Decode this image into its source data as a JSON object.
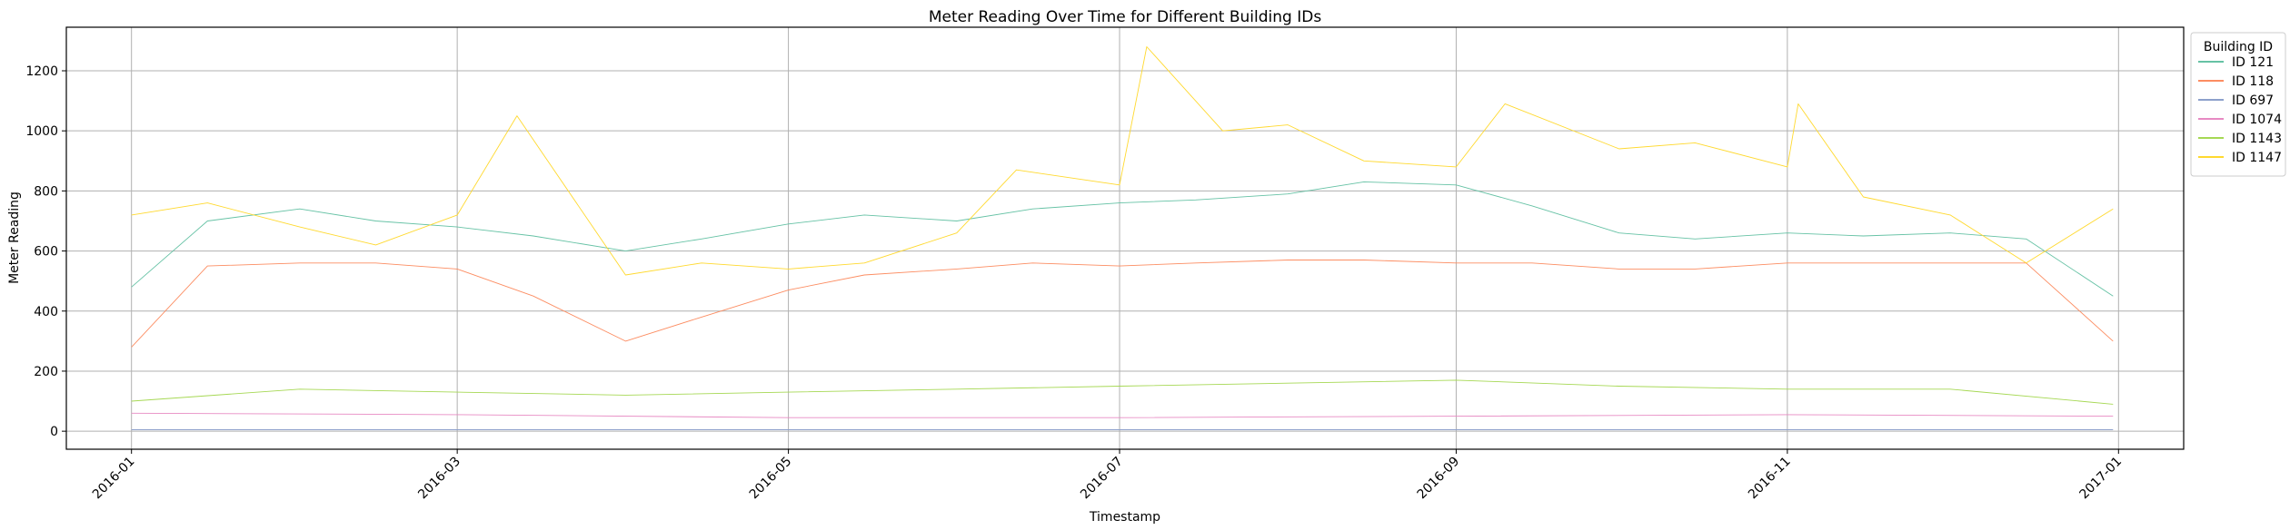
{
  "chart_data": {
    "type": "line",
    "title": "Meter Reading Over Time for Different Building IDs",
    "xlabel": "Timestamp",
    "ylabel": "Meter Reading",
    "x_range": [
      "2015-12-20",
      "2017-01-13"
    ],
    "ylim": [
      -60,
      1345
    ],
    "grid": true,
    "legend_placement": "outside-top-right",
    "legend_title": "Building ID",
    "x_ticks": [
      {
        "date": "2016-01-01",
        "label": "2016-01"
      },
      {
        "date": "2016-03-01",
        "label": "2016-03"
      },
      {
        "date": "2016-05-01",
        "label": "2016-05"
      },
      {
        "date": "2016-07-01",
        "label": "2016-07"
      },
      {
        "date": "2016-09-01",
        "label": "2016-09"
      },
      {
        "date": "2016-11-01",
        "label": "2016-11"
      },
      {
        "date": "2017-01-01",
        "label": "2017-01"
      }
    ],
    "y_ticks": [
      0,
      200,
      400,
      600,
      800,
      1000,
      1200
    ],
    "series": [
      {
        "name": "ID 121",
        "color": "#66c2a5",
        "x": [
          "2016-01-01",
          "2016-01-15",
          "2016-02-01",
          "2016-02-15",
          "2016-03-01",
          "2016-03-15",
          "2016-04-01",
          "2016-04-15",
          "2016-05-01",
          "2016-05-15",
          "2016-06-01",
          "2016-06-15",
          "2016-07-01",
          "2016-07-15",
          "2016-08-01",
          "2016-08-15",
          "2016-09-01",
          "2016-09-15",
          "2016-10-01",
          "2016-10-15",
          "2016-11-01",
          "2016-11-15",
          "2016-12-01",
          "2016-12-15",
          "2016-12-31"
        ],
        "y": [
          480,
          700,
          740,
          700,
          680,
          650,
          600,
          640,
          690,
          720,
          700,
          740,
          760,
          770,
          790,
          830,
          820,
          750,
          660,
          640,
          660,
          650,
          660,
          640,
          450
        ]
      },
      {
        "name": "ID 118",
        "color": "#fc8d62",
        "x": [
          "2016-01-01",
          "2016-01-15",
          "2016-02-01",
          "2016-02-15",
          "2016-03-01",
          "2016-03-15",
          "2016-04-01",
          "2016-04-15",
          "2016-05-01",
          "2016-05-15",
          "2016-06-01",
          "2016-06-15",
          "2016-07-01",
          "2016-07-15",
          "2016-08-01",
          "2016-08-15",
          "2016-09-01",
          "2016-09-15",
          "2016-10-01",
          "2016-10-15",
          "2016-11-01",
          "2016-11-15",
          "2016-12-01",
          "2016-12-15",
          "2016-12-31"
        ],
        "y": [
          280,
          550,
          560,
          560,
          540,
          450,
          300,
          380,
          470,
          520,
          540,
          560,
          550,
          560,
          570,
          570,
          560,
          560,
          540,
          540,
          560,
          560,
          560,
          560,
          300
        ]
      },
      {
        "name": "ID 697",
        "color": "#8da0cb",
        "x": [
          "2016-01-01",
          "2016-03-01",
          "2016-05-01",
          "2016-07-01",
          "2016-09-01",
          "2016-11-01",
          "2016-12-31"
        ],
        "y": [
          5,
          5,
          5,
          5,
          5,
          5,
          5
        ]
      },
      {
        "name": "ID 1074",
        "color": "#e78ac3",
        "x": [
          "2016-01-01",
          "2016-03-01",
          "2016-05-01",
          "2016-07-01",
          "2016-09-01",
          "2016-11-01",
          "2016-12-31"
        ],
        "y": [
          60,
          55,
          45,
          45,
          50,
          55,
          50
        ]
      },
      {
        "name": "ID 1143",
        "color": "#a6d854",
        "x": [
          "2016-01-01",
          "2016-02-01",
          "2016-03-01",
          "2016-04-01",
          "2016-05-01",
          "2016-06-01",
          "2016-07-01",
          "2016-08-01",
          "2016-09-01",
          "2016-10-01",
          "2016-11-01",
          "2016-12-01",
          "2016-12-31"
        ],
        "y": [
          100,
          140,
          130,
          120,
          130,
          140,
          150,
          160,
          170,
          150,
          140,
          140,
          90
        ]
      },
      {
        "name": "ID 1147",
        "color": "#ffd92f",
        "x": [
          "2016-01-01",
          "2016-01-15",
          "2016-02-01",
          "2016-02-15",
          "2016-03-01",
          "2016-03-12",
          "2016-04-01",
          "2016-04-15",
          "2016-05-01",
          "2016-05-15",
          "2016-06-01",
          "2016-06-12",
          "2016-07-01",
          "2016-07-06",
          "2016-07-20",
          "2016-08-01",
          "2016-08-15",
          "2016-09-01",
          "2016-09-10",
          "2016-10-01",
          "2016-10-15",
          "2016-11-01",
          "2016-11-03",
          "2016-11-15",
          "2016-12-01",
          "2016-12-15",
          "2016-12-31"
        ],
        "y": [
          720,
          760,
          680,
          620,
          720,
          1050,
          520,
          560,
          540,
          560,
          660,
          870,
          820,
          1280,
          1000,
          1020,
          900,
          880,
          1090,
          940,
          960,
          880,
          1090,
          780,
          720,
          560,
          740
        ]
      }
    ]
  }
}
